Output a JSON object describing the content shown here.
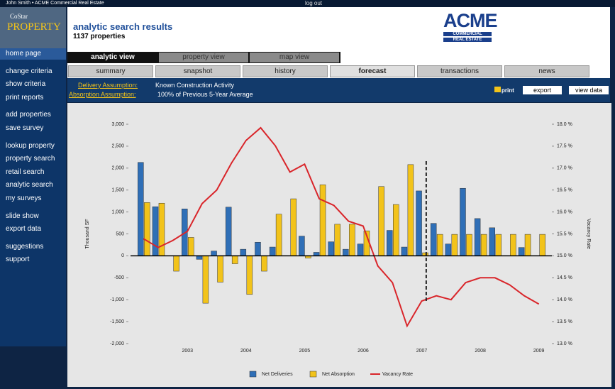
{
  "header": {
    "user": "John Smith • ACME Commercial Real Estate",
    "logout": "log out",
    "logo": [
      "CoStar",
      "PROPERTY"
    ],
    "brand": [
      "ACME",
      "COMMERCIAL",
      "REAL ESTATE"
    ]
  },
  "page": {
    "title": "analytic search results",
    "subtitle": "1137 properties"
  },
  "views": [
    "analytic view",
    "property view",
    "map view"
  ],
  "tabs": [
    "summary",
    "snapshot",
    "history",
    "forecast",
    "transactions",
    "news"
  ],
  "assumptions": [
    {
      "label": "Delivery Assumption:",
      "value": "Known Construction Activity"
    },
    {
      "label": "Absorption Assumption:",
      "value": "100% of Previous 5-Year Average"
    }
  ],
  "actions": [
    "print",
    "export",
    "view data"
  ],
  "sidebar": [
    [
      "home page"
    ],
    [
      "change criteria",
      "show criteria",
      "print reports"
    ],
    [
      "add properties",
      "save survey"
    ],
    [
      "lookup property",
      "property search",
      "retail search",
      "analytic search",
      "my surveys"
    ],
    [
      "slide show",
      "export data"
    ],
    [
      "suggestions",
      "support"
    ]
  ],
  "chart_data": {
    "type": "bar",
    "ylabel": "Thousand SF",
    "y2label": "Vacancy Rate",
    "categories": [
      null,
      null,
      null,
      "2003",
      null,
      null,
      null,
      "2004",
      null,
      null,
      null,
      "2005",
      null,
      null,
      null,
      "2006",
      null,
      null,
      null,
      "2007",
      null,
      null,
      null,
      "2008",
      null,
      null,
      null,
      "2009"
    ],
    "series": [
      {
        "name": "Net Deliveries",
        "color": "#2f6fb7",
        "values": [
          2130,
          1120,
          0,
          1070,
          -80,
          110,
          1110,
          150,
          310,
          200,
          0,
          450,
          80,
          320,
          150,
          270,
          0,
          580,
          200,
          1480,
          740,
          270,
          1540,
          850,
          640,
          0,
          190,
          0
        ]
      },
      {
        "name": "Net Absorption",
        "color": "#f2c31a",
        "values": [
          1215,
          1200,
          -350,
          420,
          -1080,
          -600,
          -180,
          -880,
          -350,
          950,
          1300,
          -50,
          1620,
          720,
          720,
          570,
          1580,
          1170,
          2080,
          70,
          490,
          490,
          490,
          490,
          490,
          490,
          490,
          490
        ]
      },
      {
        "name": "Vacancy Rate",
        "color": "#d9252a",
        "type": "line",
        "axis": "y2",
        "values": [
          15.39,
          15.19,
          15.35,
          15.56,
          16.19,
          16.5,
          17.11,
          17.63,
          17.92,
          17.51,
          16.91,
          17.09,
          16.3,
          16.15,
          15.79,
          15.68,
          14.77,
          14.39,
          13.4,
          13.97,
          14.09,
          14.0,
          14.39,
          14.5,
          14.5,
          14.34,
          14.09,
          13.9
        ]
      }
    ],
    "ylim": [
      -2000,
      3000
    ],
    "yticks": [
      {
        "value": 3000,
        "label": "3,000"
      },
      {
        "value": 2500,
        "label": "2,500"
      },
      {
        "value": 2000,
        "label": "2,000"
      },
      {
        "value": 1500,
        "label": "1,500"
      },
      {
        "value": 1000,
        "label": "1,000"
      },
      500,
      0,
      -500,
      {
        "value": -1000,
        "label": "-1,000"
      },
      {
        "value": -1500,
        "label": "-1,500"
      },
      {
        "value": -2000,
        "label": "-2,000"
      }
    ],
    "y2lim": [
      13,
      18
    ],
    "y2ticks": [
      {
        "value": 18,
        "label": "18.0 %"
      },
      {
        "value": 17.5,
        "label": "17.5 %"
      },
      {
        "value": 17,
        "label": "17.0 %"
      },
      {
        "value": 16.5,
        "label": "16.5 %"
      },
      {
        "value": 16,
        "label": "16.0 %"
      },
      {
        "value": 15.5,
        "label": "15.5 %"
      },
      {
        "value": 15,
        "label": "15.0 %"
      },
      {
        "value": 14.5,
        "label": "14.5 %"
      },
      {
        "value": 14,
        "label": "14.0 %"
      },
      {
        "value": 13.5,
        "label": "13.5 %"
      },
      {
        "value": 13,
        "label": "13.0 %"
      }
    ],
    "grid": false
  }
}
